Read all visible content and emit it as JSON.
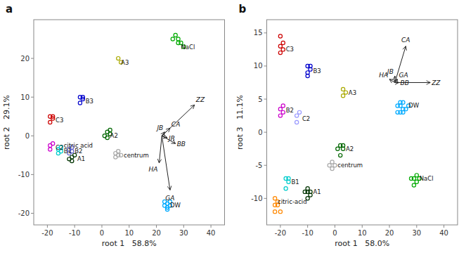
{
  "chart_data": [
    {
      "type": "scatter",
      "title": "a",
      "x_label": "root 1   58.8%",
      "y_label": "root 2   29.1%",
      "xlim": [
        -25,
        45
      ],
      "ylim": [
        -23,
        30
      ],
      "xticks": [
        -20,
        -10,
        0,
        10,
        20,
        30,
        40
      ],
      "yticks": [
        -20,
        -10,
        0,
        10,
        20
      ],
      "series": [
        {
          "name": "NaCl",
          "color": "#00AA00",
          "x": [
            27,
            28,
            29,
            30,
            28,
            26
          ],
          "values": [
            26,
            25,
            24,
            23,
            24,
            25
          ],
          "label_x": 29,
          "label_y": 23
        },
        {
          "name": "A3",
          "color": "#AAAA00",
          "x": [
            6,
            7
          ],
          "values": [
            20,
            19
          ],
          "label_x": 7,
          "label_y": 19
        },
        {
          "name": "B3",
          "color": "#0000CC",
          "x": [
            -8,
            -7,
            -8,
            -7
          ],
          "values": [
            10,
            9.5,
            8.5,
            10
          ],
          "label_x": -6,
          "label_y": 9
        },
        {
          "name": "C3",
          "color": "#CC0000",
          "x": [
            -19,
            -18,
            -19,
            -18
          ],
          "values": [
            5,
            4.5,
            3.5,
            5
          ],
          "label_x": -17,
          "label_y": 4
        },
        {
          "name": "A2",
          "color": "#006600",
          "x": [
            2,
            3,
            2,
            3,
            1
          ],
          "values": [
            1,
            0.5,
            -0.5,
            1.5,
            0
          ],
          "label_x": 3,
          "label_y": 0
        },
        {
          "name": "B2",
          "color": "#6666CC",
          "x": [
            -12,
            -11,
            -12,
            -11
          ],
          "values": [
            -3.5,
            -3,
            -4.5,
            -4
          ],
          "label_x": -10,
          "label_y": -4
        },
        {
          "name": "C2",
          "color": "#CC00CC",
          "x": [
            -19,
            -18,
            -19
          ],
          "values": [
            -2.5,
            -2,
            -3.5
          ],
          "label_x": -17,
          "label_y": -3
        },
        {
          "name": "B1",
          "color": "#00CCCC",
          "x": [
            -16,
            -15,
            -16,
            -15
          ],
          "values": [
            -3.5,
            -3,
            -4.5,
            -4
          ],
          "label_x": -14,
          "label_y": -4
        },
        {
          "name": "A1",
          "color": "#003300",
          "x": [
            -11,
            -10,
            -11,
            -12
          ],
          "values": [
            -5.5,
            -5,
            -6.5,
            -6
          ],
          "label_x": -9,
          "label_y": -6
        },
        {
          "name": "citric acid",
          "color": "#228822",
          "x": [],
          "values": [],
          "label_x": -14,
          "label_y": -2.5
        },
        {
          "name": "centrum",
          "color": "#AAAAAA",
          "x": [
            5,
            6,
            5,
            6,
            7
          ],
          "values": [
            -4.5,
            -4,
            -5.5,
            -5,
            -5
          ],
          "label_x": 8,
          "label_y": -5
        },
        {
          "name": "DW",
          "color": "#00AAFF",
          "x": [
            23,
            24,
            25,
            23,
            24,
            25,
            24
          ],
          "values": [
            -18,
            -17.5,
            -17,
            -17,
            -18.5,
            -18,
            -19
          ],
          "label_x": 25,
          "label_y": -18
        }
      ],
      "arrows": [
        {
          "text": "ZZ",
          "x0": 22,
          "y0": 0,
          "x1": 34,
          "y1": 8,
          "text_x": 34.5,
          "text_y": 8.5
        },
        {
          "text": "JB",
          "x0": 22,
          "y0": 0,
          "x1": 23,
          "y1": 1,
          "text_x": 22.5,
          "text_y": 1.3
        },
        {
          "text": "CA",
          "x0": 22,
          "y0": 0,
          "x1": 25,
          "y1": 2,
          "text_x": 25.5,
          "text_y": 2.2
        },
        {
          "text": "JR",
          "x0": 22,
          "y0": 0,
          "x1": 24,
          "y1": -0.5,
          "text_x": 24.5,
          "text_y": -0.5
        },
        {
          "text": "BB",
          "x0": 22,
          "y0": 0,
          "x1": 27,
          "y1": -2,
          "text_x": 27.5,
          "text_y": -2
        },
        {
          "text": "HA",
          "x0": 22,
          "y0": 0,
          "x1": 21,
          "y1": -7,
          "text_x": 20.5,
          "text_y": -7.5
        },
        {
          "text": "GA",
          "x0": 22,
          "y0": 0,
          "x1": 25,
          "y1": -14,
          "text_x": 25,
          "text_y": -15
        }
      ]
    },
    {
      "type": "scatter",
      "title": "b",
      "x_label": "root 1   58.0%",
      "y_label": "root 3   11.1%",
      "xlim": [
        -25,
        45
      ],
      "ylim": [
        -14,
        17
      ],
      "xticks": [
        -20,
        -10,
        0,
        10,
        20,
        30,
        40
      ],
      "yticks": [
        -10,
        -5,
        0,
        5,
        10,
        15
      ],
      "series": [
        {
          "name": "C3",
          "color": "#CC0000",
          "x": [
            -20,
            -20,
            -19,
            -19,
            -20
          ],
          "values": [
            14.5,
            13,
            12.5,
            13.5,
            12
          ],
          "label_x": -18,
          "label_y": 12.5
        },
        {
          "name": "B3",
          "color": "#0000CC",
          "x": [
            -10,
            -9,
            -10,
            -9,
            -10
          ],
          "values": [
            10,
            9.5,
            8.5,
            10,
            9
          ],
          "label_x": -8,
          "label_y": 9.3
        },
        {
          "name": "A3",
          "color": "#AAAA00",
          "x": [
            3,
            4,
            3
          ],
          "values": [
            6.5,
            6,
            5.5
          ],
          "label_x": 5,
          "label_y": 6
        },
        {
          "name": "B2",
          "color": "#CC00CC",
          "x": [
            -20,
            -19,
            -20,
            -19
          ],
          "values": [
            3.5,
            4,
            2.5,
            3
          ],
          "label_x": -18,
          "label_y": 3.3
        },
        {
          "name": "C2",
          "color": "#9999FF",
          "x": [
            -14,
            -13,
            -14
          ],
          "values": [
            2.5,
            3,
            1.5
          ],
          "label_x": -12,
          "label_y": 2
        },
        {
          "name": "A2",
          "color": "#006600",
          "x": [
            2,
            3,
            2,
            1,
            3
          ],
          "values": [
            -2,
            -2.5,
            -3.5,
            -2.5,
            -2
          ],
          "label_x": 4,
          "label_y": -2.5
        },
        {
          "name": "centrum",
          "color": "#AAAAAA",
          "x": [
            -2,
            -1,
            0,
            -1
          ],
          "values": [
            -5,
            -4.5,
            -5,
            -5.5
          ],
          "label_x": 1,
          "label_y": -5
        },
        {
          "name": "B1",
          "color": "#00CCCC",
          "x": [
            -18,
            -17,
            -18,
            -17
          ],
          "values": [
            -7,
            -7.5,
            -8.5,
            -7
          ],
          "label_x": -16,
          "label_y": -7.5
        },
        {
          "name": "A1",
          "color": "#003300",
          "x": [
            -10,
            -9,
            -10,
            -11,
            -10,
            -9
          ],
          "values": [
            -8.5,
            -9,
            -10,
            -9,
            -9,
            -9.5
          ],
          "label_x": -8,
          "label_y": -9
        },
        {
          "name": "citric-acid",
          "color": "#FF8800",
          "x": [
            -22,
            -21,
            -22,
            -21,
            -22,
            -20
          ],
          "values": [
            -10,
            -11,
            -12,
            -10.5,
            -11,
            -12
          ],
          "label_x": -21,
          "label_y": -10.5
        },
        {
          "name": "NaCl",
          "color": "#00AA00",
          "x": [
            29,
            30,
            28,
            29,
            31,
            30
          ],
          "values": [
            -7,
            -6.5,
            -7,
            -8,
            -7,
            -7.5
          ],
          "label_x": 31,
          "label_y": -7
        },
        {
          "name": "DW",
          "color": "#00AAFF",
          "x": [
            24,
            25,
            23,
            24,
            25,
            23,
            26,
            24,
            27,
            25
          ],
          "values": [
            4,
            3,
            4,
            4.5,
            3.5,
            3,
            3.5,
            3,
            4,
            4.5
          ],
          "label_x": 27,
          "label_y": 4
        }
      ],
      "arrows": [
        {
          "text": "CA",
          "x0": 22,
          "y0": 7.5,
          "x1": 26,
          "y1": 13,
          "text_x": 26,
          "text_y": 13.5
        },
        {
          "text": "HA",
          "x0": 22,
          "y0": 7.5,
          "x1": 20,
          "y1": 8,
          "text_x": 19.5,
          "text_y": 8.2
        },
        {
          "text": "GA",
          "x0": 22,
          "y0": 7.5,
          "x1": 23,
          "y1": 8,
          "text_x": 23.5,
          "text_y": 8.2
        },
        {
          "text": "JB",
          "x0": 22,
          "y0": 7.5,
          "x1": 22,
          "y1": 8.5,
          "text_x": 21.5,
          "text_y": 8.7
        },
        {
          "text": "BB",
          "x0": 22,
          "y0": 7.5,
          "x1": 23.5,
          "y1": 7.5,
          "text_x": 24,
          "text_y": 7.5
        },
        {
          "text": "ZZ",
          "x0": 22,
          "y0": 7.5,
          "x1": 35,
          "y1": 7.5,
          "text_x": 35.5,
          "text_y": 7.5
        }
      ]
    }
  ]
}
